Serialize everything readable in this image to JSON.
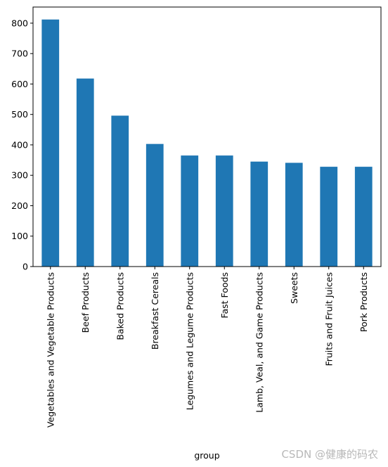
{
  "chart_data": {
    "type": "bar",
    "categories": [
      "Vegetables and Vegetable Products",
      "Beef Products",
      "Baked Products",
      "Breakfast Cereals",
      "Legumes and Legume Products",
      "Fast Foods",
      "Lamb, Veal, and Game Products",
      "Sweets",
      "Fruits and Fruit Juices",
      "Pork Products"
    ],
    "values": [
      812,
      618,
      496,
      403,
      365,
      365,
      345,
      341,
      328,
      328
    ],
    "title": "",
    "xlabel": "group",
    "ylabel": "",
    "ylim": [
      0,
      853
    ],
    "yticks": [
      0,
      100,
      200,
      300,
      400,
      500,
      600,
      700,
      800
    ],
    "grid": false,
    "legend": "none",
    "bar_color": "#1f77b4"
  },
  "watermark": "CSDN @健康的码农"
}
